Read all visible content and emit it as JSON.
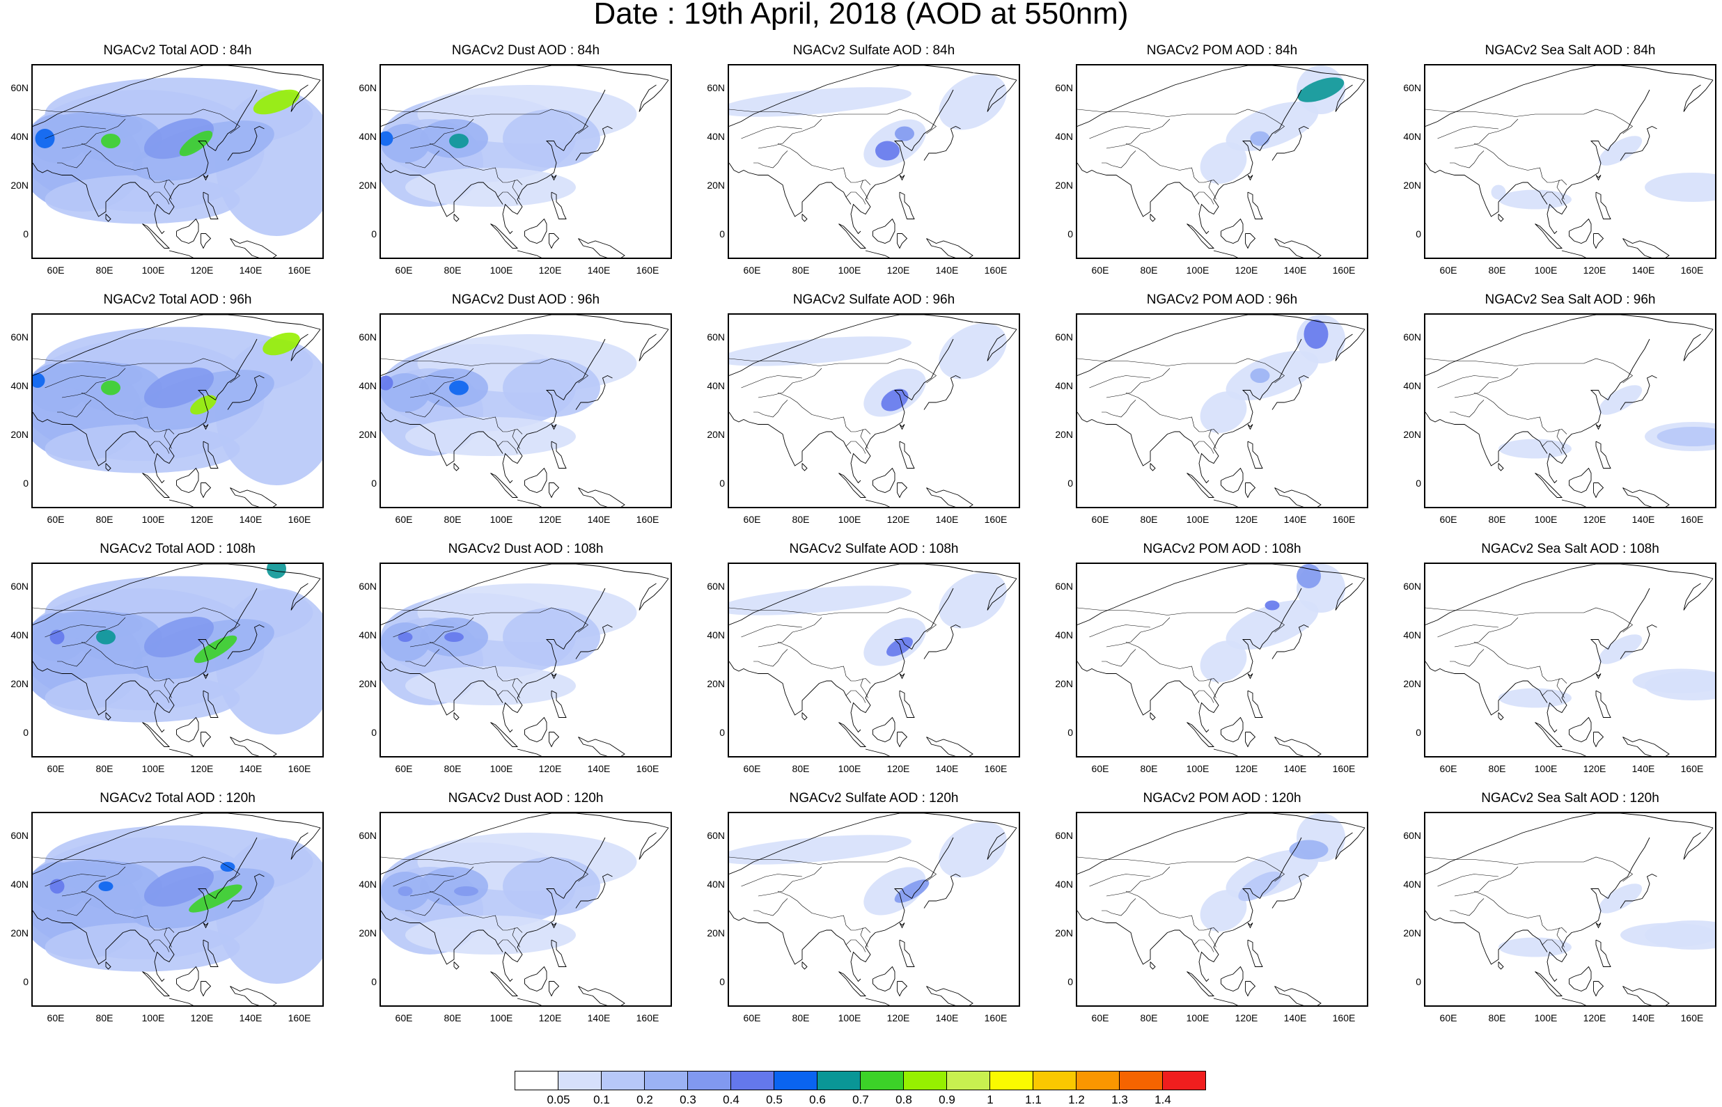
{
  "title": "Date : 19th April, 2018 (AOD at 550nm)",
  "chart_data": {
    "type": "heatmap",
    "layout": {
      "rows": 4,
      "cols": 5
    },
    "lat_ticks": [
      "60N",
      "40N",
      "20N",
      "0"
    ],
    "lon_ticks": [
      "60E",
      "80E",
      "100E",
      "120E",
      "140E",
      "160E"
    ],
    "lat_range": [
      -10,
      70
    ],
    "lon_range": [
      50,
      170
    ],
    "species": [
      "Total",
      "Dust",
      "Sulfate",
      "POM",
      "Sea Salt"
    ],
    "forecast_hours": [
      "84h",
      "96h",
      "108h",
      "120h"
    ],
    "panels": [
      {
        "title": "NGACv2 Total AOD : 84h"
      },
      {
        "title": "NGACv2 Dust AOD : 84h"
      },
      {
        "title": "NGACv2 Sulfate AOD : 84h"
      },
      {
        "title": "NGACv2 POM AOD : 84h"
      },
      {
        "title": "NGACv2 Sea Salt AOD : 84h"
      },
      {
        "title": "NGACv2 Total AOD : 96h"
      },
      {
        "title": "NGACv2 Dust AOD : 96h"
      },
      {
        "title": "NGACv2 Sulfate AOD : 96h"
      },
      {
        "title": "NGACv2 POM AOD : 96h"
      },
      {
        "title": "NGACv2 Sea Salt AOD : 96h"
      },
      {
        "title": "NGACv2 Total AOD : 108h"
      },
      {
        "title": "NGACv2 Dust AOD : 108h"
      },
      {
        "title": "NGACv2 Sulfate AOD : 108h"
      },
      {
        "title": "NGACv2 POM AOD : 108h"
      },
      {
        "title": "NGACv2 Sea Salt AOD : 108h"
      },
      {
        "title": "NGACv2 Total AOD : 120h"
      },
      {
        "title": "NGACv2 Dust AOD : 120h"
      },
      {
        "title": "NGACv2 Sulfate AOD : 120h"
      },
      {
        "title": "NGACv2 POM AOD : 120h"
      },
      {
        "title": "NGACv2 Sea Salt  AOD : 120h"
      }
    ],
    "colorbar": {
      "labels": [
        "0.05",
        "0.1",
        "0.2",
        "0.3",
        "0.4",
        "0.5",
        "0.6",
        "0.7",
        "0.8",
        "0.9",
        "1",
        "1.1",
        "1.2",
        "1.3",
        "1.4"
      ],
      "colors": [
        "#ffffff",
        "#d6e0fb",
        "#b7c8f8",
        "#9bb2f4",
        "#8199f0",
        "#6478ec",
        "#0a64f0",
        "#0a9696",
        "#3cd228",
        "#96f000",
        "#c8f050",
        "#fafa00",
        "#fac800",
        "#fa9600",
        "#f56400",
        "#f01e1e"
      ]
    }
  }
}
